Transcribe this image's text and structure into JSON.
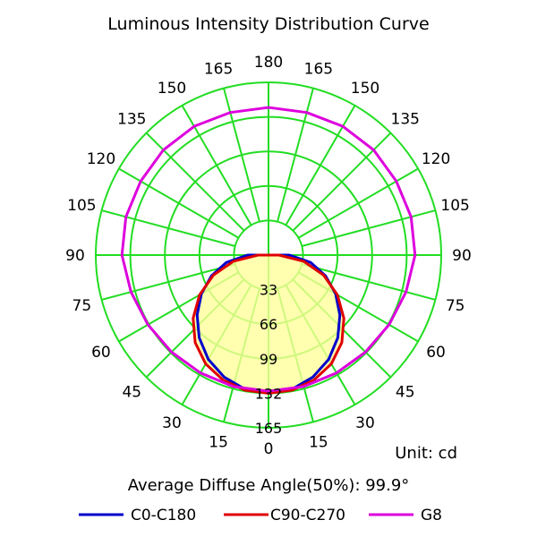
{
  "chart_data": {
    "type": "polar",
    "title": "Luminous Intensity Distribution Curve",
    "unit_label": "Unit: cd",
    "average_angle_label": "Average Diffuse Angle(50%): 99.9°",
    "r_ticks": [
      33,
      66,
      99,
      132,
      165
    ],
    "angle_labels": [
      0,
      15,
      30,
      45,
      60,
      75,
      90,
      105,
      120,
      135,
      150,
      165,
      180
    ],
    "grid": true,
    "legend_position": "bottom",
    "series": [
      {
        "name": "C0-C180",
        "color": "#0000cc",
        "values_by_angle": [
          {
            "angle": 0,
            "value": 132
          },
          {
            "angle": 10,
            "value": 130
          },
          {
            "angle": 20,
            "value": 124
          },
          {
            "angle": 30,
            "value": 115
          },
          {
            "angle": 40,
            "value": 103
          },
          {
            "angle": 50,
            "value": 89
          },
          {
            "angle": 60,
            "value": 74
          },
          {
            "angle": 70,
            "value": 58
          },
          {
            "angle": 80,
            "value": 41
          },
          {
            "angle": 90,
            "value": 20
          }
        ]
      },
      {
        "name": "C90-C270",
        "color": "#e00000",
        "values_by_angle": [
          {
            "angle": 0,
            "value": 132
          },
          {
            "angle": 10,
            "value": 131
          },
          {
            "angle": 20,
            "value": 127
          },
          {
            "angle": 30,
            "value": 120
          },
          {
            "angle": 40,
            "value": 109
          },
          {
            "angle": 50,
            "value": 94
          },
          {
            "angle": 60,
            "value": 76
          },
          {
            "angle": 70,
            "value": 56
          },
          {
            "angle": 80,
            "value": 34
          },
          {
            "angle": 90,
            "value": 10
          }
        ]
      },
      {
        "name": "G8",
        "color": "#dd00dd",
        "values_by_angle": [
          {
            "angle": 0,
            "value": 130
          },
          {
            "angle": 15,
            "value": 130
          },
          {
            "angle": 30,
            "value": 130
          },
          {
            "angle": 45,
            "value": 131
          },
          {
            "angle": 60,
            "value": 133
          },
          {
            "angle": 75,
            "value": 136
          },
          {
            "angle": 90,
            "value": 140
          },
          {
            "angle": 105,
            "value": 141
          },
          {
            "angle": 120,
            "value": 141
          },
          {
            "angle": 135,
            "value": 142
          },
          {
            "angle": 150,
            "value": 142
          },
          {
            "angle": 165,
            "value": 141
          },
          {
            "angle": 180,
            "value": 141
          }
        ]
      }
    ]
  }
}
